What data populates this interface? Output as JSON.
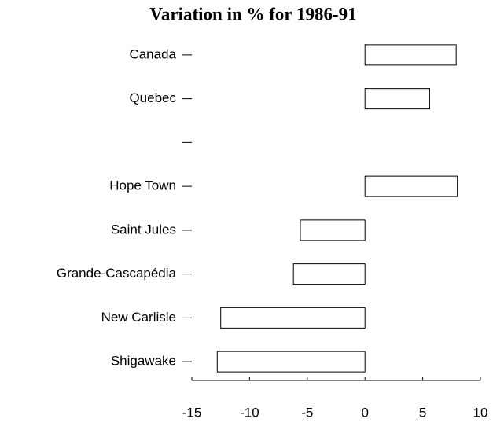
{
  "chart_data": {
    "type": "hbar",
    "title": "Variation in % for 1986-91",
    "categories": [
      "Canada",
      "Quebec",
      null,
      "Hope Town",
      "Saint Jules",
      "Grande-Cascapédia",
      "New Carlisle",
      "Shigawake"
    ],
    "values": [
      7.9,
      5.6,
      null,
      8.0,
      -5.6,
      -6.2,
      -12.5,
      -12.8
    ],
    "color": "#ffffff",
    "xlim": [
      -15,
      10
    ],
    "xticks": [
      -15,
      -10,
      -5,
      0,
      5,
      10
    ],
    "grid": false
  }
}
